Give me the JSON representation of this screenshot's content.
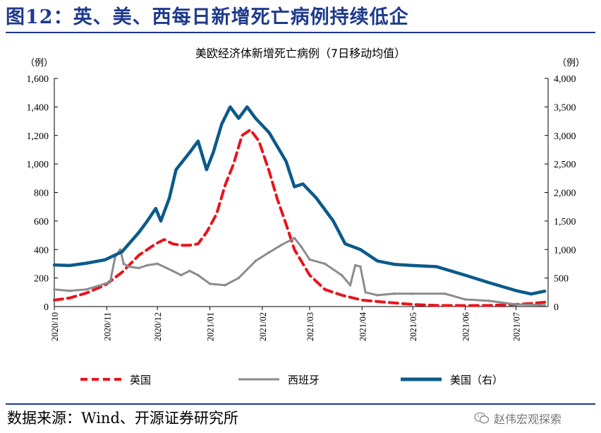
{
  "figure": {
    "title": "图12：英、美、西每日新增死亡病例持续低企",
    "source": "数据来源：Wind、开源证券研究所",
    "watermark": "赵伟宏观探索",
    "watermark_icon": "wechat-icon"
  },
  "chart_data": {
    "type": "line",
    "title": "美欧经济体新增死亡病例（7日移动均值）",
    "left_unit": "（例）",
    "right_unit": "（例）",
    "x_labels": [
      "2020/10",
      "2020/11",
      "2020/12",
      "2021/01",
      "2021/02",
      "2021/03",
      "2021/04",
      "2021/05",
      "2021/06",
      "2021/07"
    ],
    "y_left": {
      "min": 0,
      "max": 1600,
      "ticks": [
        0,
        200,
        400,
        600,
        800,
        1000,
        1200,
        1400,
        1600
      ],
      "tick_labels": [
        "0",
        "200",
        "400",
        "600",
        "800",
        "1,000",
        "1,200",
        "1,400",
        "1,600"
      ]
    },
    "y_right": {
      "min": 0,
      "max": 4000,
      "ticks": [
        0,
        500,
        1000,
        1500,
        2000,
        2500,
        3000,
        3500,
        4000
      ],
      "tick_labels": [
        "0",
        "500",
        "1,000",
        "1,500",
        "2,000",
        "2,500",
        "3,000",
        "3,500",
        "4,000"
      ]
    },
    "legend_position": "bottom",
    "colors": {
      "uk": "#e8141c",
      "spain": "#8c8c8c",
      "us": "#0b5a8a"
    },
    "series": [
      {
        "name": "英国",
        "axis": "left",
        "style": "dashed",
        "points": [
          [
            "2020-10-01",
            45
          ],
          [
            "2020-10-10",
            60
          ],
          [
            "2020-10-20",
            95
          ],
          [
            "2020-10-31",
            150
          ],
          [
            "2020-11-10",
            240
          ],
          [
            "2020-11-20",
            360
          ],
          [
            "2020-11-30",
            440
          ],
          [
            "2020-12-05",
            470
          ],
          [
            "2020-12-10",
            440
          ],
          [
            "2020-12-15",
            430
          ],
          [
            "2020-12-20",
            430
          ],
          [
            "2020-12-25",
            440
          ],
          [
            "2020-12-30",
            520
          ],
          [
            "2021-01-05",
            650
          ],
          [
            "2021-01-10",
            850
          ],
          [
            "2021-01-15",
            1000
          ],
          [
            "2021-01-20",
            1200
          ],
          [
            "2021-01-25",
            1240
          ],
          [
            "2021-01-30",
            1160
          ],
          [
            "2021-02-05",
            950
          ],
          [
            "2021-02-10",
            750
          ],
          [
            "2021-02-15",
            580
          ],
          [
            "2021-02-20",
            400
          ],
          [
            "2021-02-25",
            300
          ],
          [
            "2021-03-01",
            220
          ],
          [
            "2021-03-10",
            120
          ],
          [
            "2021-03-20",
            80
          ],
          [
            "2021-04-01",
            45
          ],
          [
            "2021-04-15",
            30
          ],
          [
            "2021-05-01",
            15
          ],
          [
            "2021-05-15",
            8
          ],
          [
            "2021-06-01",
            7
          ],
          [
            "2021-06-15",
            8
          ],
          [
            "2021-07-01",
            15
          ],
          [
            "2021-07-10",
            22
          ],
          [
            "2021-07-18",
            30
          ]
        ]
      },
      {
        "name": "西班牙",
        "axis": "left",
        "style": "line-with-markers",
        "points": [
          [
            "2020-10-01",
            120
          ],
          [
            "2020-10-10",
            110
          ],
          [
            "2020-10-20",
            120
          ],
          [
            "2020-10-31",
            160
          ],
          [
            "2020-11-03",
            170
          ],
          [
            "2020-11-06",
            350
          ],
          [
            "2020-11-09",
            400
          ],
          [
            "2020-11-11",
            300
          ],
          [
            "2020-11-14",
            280
          ],
          [
            "2020-11-20",
            270
          ],
          [
            "2020-11-25",
            290
          ],
          [
            "2020-12-01",
            300
          ],
          [
            "2020-12-10",
            250
          ],
          [
            "2020-12-15",
            220
          ],
          [
            "2020-12-20",
            250
          ],
          [
            "2020-12-25",
            220
          ],
          [
            "2021-01-01",
            160
          ],
          [
            "2021-01-10",
            150
          ],
          [
            "2021-01-18",
            200
          ],
          [
            "2021-01-28",
            320
          ],
          [
            "2021-02-05",
            380
          ],
          [
            "2021-02-12",
            430
          ],
          [
            "2021-02-20",
            480
          ],
          [
            "2021-02-24",
            420
          ],
          [
            "2021-03-01",
            330
          ],
          [
            "2021-03-10",
            300
          ],
          [
            "2021-03-20",
            220
          ],
          [
            "2021-03-25",
            150
          ],
          [
            "2021-03-28",
            290
          ],
          [
            "2021-03-31",
            280
          ],
          [
            "2021-04-03",
            100
          ],
          [
            "2021-04-10",
            80
          ],
          [
            "2021-04-20",
            90
          ],
          [
            "2021-05-01",
            90
          ],
          [
            "2021-05-20",
            90
          ],
          [
            "2021-06-01",
            50
          ],
          [
            "2021-06-15",
            40
          ],
          [
            "2021-07-01",
            15
          ],
          [
            "2021-07-18",
            10
          ]
        ]
      },
      {
        "name": "美国（右）",
        "axis": "right",
        "style": "solid",
        "points": [
          [
            "2020-10-01",
            730
          ],
          [
            "2020-10-10",
            720
          ],
          [
            "2020-10-20",
            760
          ],
          [
            "2020-10-31",
            820
          ],
          [
            "2020-11-10",
            960
          ],
          [
            "2020-11-20",
            1300
          ],
          [
            "2020-11-25",
            1500
          ],
          [
            "2020-11-30",
            1720
          ],
          [
            "2020-12-03",
            1500
          ],
          [
            "2020-12-08",
            1900
          ],
          [
            "2020-12-12",
            2400
          ],
          [
            "2020-12-20",
            2700
          ],
          [
            "2020-12-25",
            2900
          ],
          [
            "2020-12-30",
            2400
          ],
          [
            "2021-01-03",
            2700
          ],
          [
            "2021-01-08",
            3200
          ],
          [
            "2021-01-13",
            3500
          ],
          [
            "2021-01-18",
            3300
          ],
          [
            "2021-01-23",
            3500
          ],
          [
            "2021-01-28",
            3300
          ],
          [
            "2021-02-05",
            3050
          ],
          [
            "2021-02-15",
            2550
          ],
          [
            "2021-02-20",
            2100
          ],
          [
            "2021-02-25",
            2150
          ],
          [
            "2021-03-05",
            1900
          ],
          [
            "2021-03-15",
            1500
          ],
          [
            "2021-03-22",
            1100
          ],
          [
            "2021-03-31",
            1000
          ],
          [
            "2021-04-10",
            800
          ],
          [
            "2021-04-20",
            740
          ],
          [
            "2021-05-01",
            720
          ],
          [
            "2021-05-15",
            700
          ],
          [
            "2021-06-01",
            550
          ],
          [
            "2021-06-15",
            420
          ],
          [
            "2021-07-01",
            280
          ],
          [
            "2021-07-10",
            220
          ],
          [
            "2021-07-18",
            270
          ]
        ]
      }
    ]
  }
}
